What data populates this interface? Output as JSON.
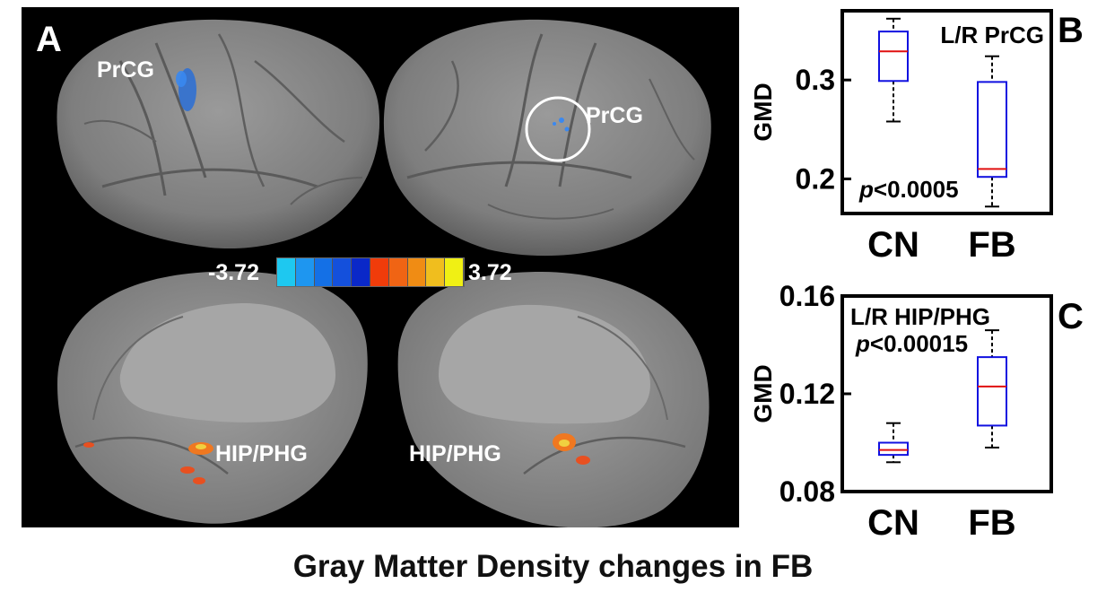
{
  "figure_title": "Gray Matter Density changes in FB",
  "panel_a": {
    "letter": "A",
    "labels": {
      "prcg_left": "PrCG",
      "prcg_right": "PrCG",
      "hip_left": "HIP/PHG",
      "hip_right": "HIP/PHG"
    },
    "colorbar": {
      "min_label": "-3.72",
      "max_label": "3.72",
      "colors": [
        "#1ec8f0",
        "#1e96f0",
        "#1470e6",
        "#1450dc",
        "#0a28c8",
        "#f03c0a",
        "#f06414",
        "#f08c14",
        "#f0be1e",
        "#f0f014"
      ]
    }
  },
  "chart_data": [
    {
      "type": "box",
      "panel": "B",
      "title": "L/R PrCG",
      "annotation": "p<0.0005",
      "ylabel": "GMD",
      "categories": [
        "CN",
        "FB"
      ],
      "ylim": [
        0.165,
        0.37
      ],
      "yticks": [
        {
          "value": 0.3,
          "label": "0.3"
        },
        {
          "value": 0.2,
          "label": "0.2"
        }
      ],
      "boxes": [
        {
          "category": "CN",
          "min": 0.258,
          "q1": 0.299,
          "median": 0.329,
          "q3": 0.349,
          "max": 0.362
        },
        {
          "category": "FB",
          "min": 0.172,
          "q1": 0.202,
          "median": 0.21,
          "q3": 0.298,
          "max": 0.324
        }
      ]
    },
    {
      "type": "box",
      "panel": "C",
      "title": "L/R HIP/PHG",
      "annotation": "p<0.00015",
      "ylabel": "GMD",
      "categories": [
        "CN",
        "FB"
      ],
      "ylim": [
        0.08,
        0.16
      ],
      "yticks": [
        {
          "value": 0.16,
          "label": "0.16"
        },
        {
          "value": 0.12,
          "label": "0.12"
        },
        {
          "value": 0.08,
          "label": "0.08"
        }
      ],
      "boxes": [
        {
          "category": "CN",
          "min": 0.092,
          "q1": 0.095,
          "median": 0.097,
          "q3": 0.1,
          "max": 0.108
        },
        {
          "category": "FB",
          "min": 0.098,
          "q1": 0.107,
          "median": 0.123,
          "q3": 0.135,
          "max": 0.146
        }
      ]
    }
  ],
  "colors": {
    "box": "#1010e0",
    "median": "#e01010",
    "whisker": "#000000",
    "brain": "#8a8a8a",
    "background_a": "#000000"
  }
}
